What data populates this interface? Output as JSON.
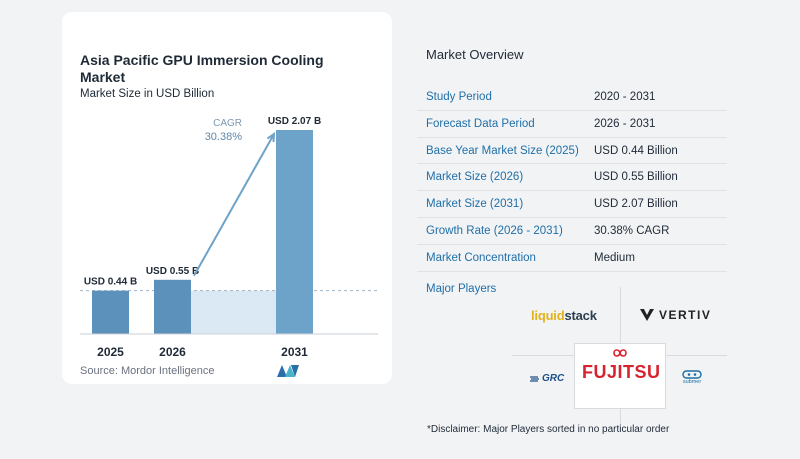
{
  "chart_data": {
    "type": "bar",
    "title": "Asia Pacific GPU Immersion Cooling Market",
    "subtitle": "Market Size in USD Billion",
    "categories": [
      "2025",
      "2026",
      "2031"
    ],
    "values": [
      0.44,
      0.55,
      2.07
    ],
    "data_labels": [
      "USD 0.44 B",
      "USD 0.55 B",
      "USD 2.07 B"
    ],
    "unit": "USD Billion",
    "cagr_label": "CAGR",
    "cagr_value": "30.38%",
    "colors": {
      "bar": "#6ea3c9",
      "bar_dark": "#5b91bb",
      "shade": "#dbe9f4",
      "arrow": "#6ea3c9"
    },
    "source": "Source: Mordor Intelligence"
  },
  "overview": {
    "title": "Market Overview",
    "rows": [
      {
        "label": "Study Period",
        "value": "2020 - 2031"
      },
      {
        "label": "Forecast Data Period",
        "value": "2026 - 2031"
      },
      {
        "label": "Base Year Market Size (2025)",
        "value": "USD 0.44 Billion"
      },
      {
        "label": "Market Size (2026)",
        "value": "USD 0.55 Billion"
      },
      {
        "label": "Market Size (2031)",
        "value": "USD 2.07 Billion"
      },
      {
        "label": "Growth Rate (2026 - 2031)",
        "value": "30.38% CAGR"
      },
      {
        "label": "Market Concentration",
        "value": "Medium"
      }
    ]
  },
  "players": {
    "title": "Major Players",
    "logos": {
      "liquidstack_a": "liquid",
      "liquidstack_b": "stack",
      "vertiv": "VERTIV",
      "fujitsu": "FUJITSU",
      "grc": "GRC",
      "submer": "submer"
    },
    "disclaimer": "*Disclaimer: Major Players sorted in no particular order"
  }
}
